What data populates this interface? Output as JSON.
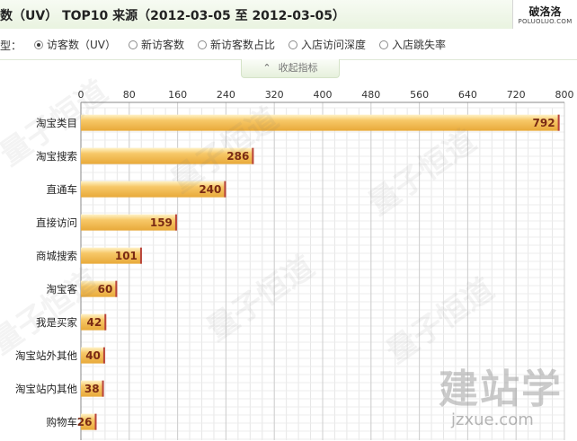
{
  "header": {
    "title": "数（UV） TOP10 来源（2012-03-05 至 2012-03-05）",
    "logo_cn": "破洛洛",
    "logo_en": "POLUOLUO.COM"
  },
  "controls": {
    "label": "型：",
    "options": [
      {
        "label": "访客数（UV）",
        "selected": true
      },
      {
        "label": "新访客数",
        "selected": false
      },
      {
        "label": "新访客数占比",
        "selected": false
      },
      {
        "label": "入店访问深度",
        "selected": false
      },
      {
        "label": "入店跳失率",
        "selected": false
      }
    ],
    "collapse_label": "收起指标"
  },
  "watermark": {
    "text": "量子恒道",
    "brand": "建站学",
    "brand_url": "jzxue.com"
  },
  "chart_data": {
    "type": "bar",
    "orientation": "horizontal",
    "categories": [
      "淘宝类目",
      "淘宝搜索",
      "直通车",
      "直接访问",
      "商城搜索",
      "淘宝客",
      "我是买家",
      "淘宝站外其他",
      "淘宝站内其他",
      "购物车"
    ],
    "values": [
      792,
      286,
      240,
      159,
      101,
      60,
      42,
      40,
      38,
      26
    ],
    "xlim": [
      0,
      800
    ],
    "xticks": [
      0,
      80,
      160,
      240,
      320,
      400,
      480,
      560,
      640,
      720,
      800
    ],
    "grid": true,
    "bar_color": "#f7c868",
    "bar_edge_color": "#b8433c",
    "label_color": "#7a2a14"
  }
}
